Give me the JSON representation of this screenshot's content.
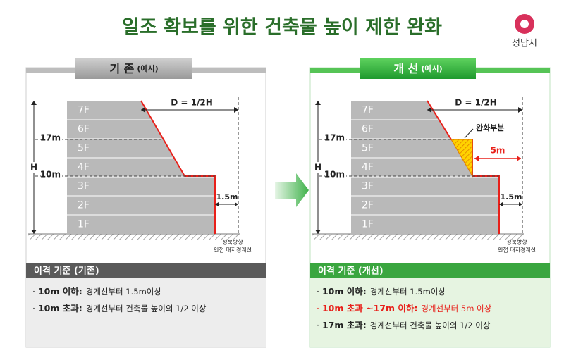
{
  "title": "일조 확보를 위한 건축물 높이 제한 완화",
  "logo": {
    "text": "성남시"
  },
  "panels": [
    {
      "tab": {
        "label": "기 존",
        "note": "(예시)"
      },
      "floors": [
        "7F",
        "6F",
        "5F",
        "4F",
        "3F",
        "2F",
        "1F"
      ],
      "labels": {
        "d": "D = 1/2H",
        "h17": "17m",
        "h10": "10m",
        "h": "H",
        "gap": "1.5m",
        "direction": "정북방향",
        "boundary": "인접 대지경계선"
      },
      "criteria": {
        "title": "이격 기준 (기존)",
        "items": [
          {
            "term": "10m 이하:",
            "text": "경계선부터 1.5m이상"
          },
          {
            "term": "10m 초과:",
            "text": "경계선부터 건축물 높이의 1/2 이상"
          }
        ]
      }
    },
    {
      "tab": {
        "label": "개 선",
        "note": "(예시)"
      },
      "floors": [
        "7F",
        "6F",
        "5F",
        "4F",
        "3F",
        "2F",
        "1F"
      ],
      "labels": {
        "d": "D = 1/2H",
        "h17": "17m",
        "h10": "10m",
        "h": "H",
        "gap": "1.5m",
        "direction": "정북방향",
        "boundary": "인접 대지경계선",
        "relaxed": "완화부분",
        "relaxed_gap": "5m"
      },
      "criteria": {
        "title": "이격 기준 (개선)",
        "items": [
          {
            "term": "10m 이하:",
            "text": "경계선부터 1.5m이상"
          },
          {
            "term": "10m 초과 ~17m 이하:",
            "text": "경계선부터 5m 이상",
            "color": "#e8201a"
          },
          {
            "term": "17m 초과:",
            "text": "경계선부터 건축물 높이의 1/2 이상"
          }
        ]
      }
    }
  ]
}
